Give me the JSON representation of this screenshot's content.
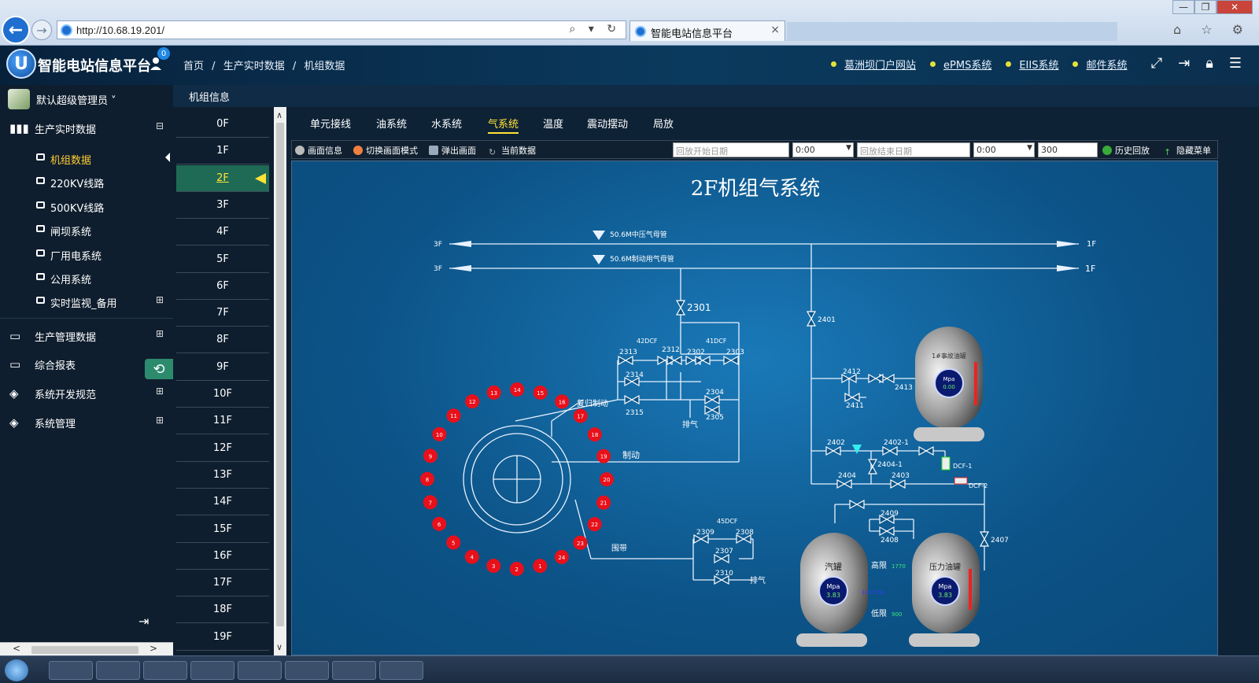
{
  "browser": {
    "url": "http://10.68.19.201/",
    "tab_title": "智能电站信息平台",
    "tab_close": "×",
    "address_tools": "⌕ ▾ ↻",
    "win_min": "—",
    "win_max": "❐",
    "win_close": "✕",
    "icons": "⌂ ☆ ⚙"
  },
  "header": {
    "logo_letter": "U",
    "app_title": "智能电站信息平台",
    "badge": "0",
    "breadcrumb": [
      "首页",
      "/",
      "生产实时数据",
      "/",
      "机组数据"
    ],
    "links": [
      "葛洲坝门户网站",
      "ePMS系统",
      "EIIS系统",
      "邮件系统"
    ]
  },
  "sidebar": {
    "user_name": "默认超级管理员 ˅",
    "groups": [
      {
        "label": "生产实时数据",
        "toggle": "⊟"
      },
      {
        "label": "生产管理数据",
        "toggle": "⊞"
      },
      {
        "label": "综合报表",
        "toggle": "⊞"
      },
      {
        "label": "系统开发规范",
        "toggle": "⊞"
      },
      {
        "label": "系统管理",
        "toggle": "⊞"
      }
    ],
    "items": [
      {
        "label": "机组数据",
        "active": true
      },
      {
        "label": "220KV线路"
      },
      {
        "label": "500KV线路"
      },
      {
        "label": "闸坝系统"
      },
      {
        "label": "厂用电系统"
      },
      {
        "label": "公用系统"
      },
      {
        "label": "实时监视_备用",
        "toggle": "⊞"
      }
    ]
  },
  "unit_bar": {
    "title": "机组信息"
  },
  "floors": [
    "0F",
    "1F",
    "2F",
    "3F",
    "4F",
    "5F",
    "6F",
    "7F",
    "8F",
    "9F",
    "10F",
    "11F",
    "12F",
    "13F",
    "14F",
    "15F",
    "16F",
    "17F",
    "18F",
    "19F"
  ],
  "active_floor": "2F",
  "tabs": [
    "单元接线",
    "油系统",
    "水系统",
    "气系统",
    "温度",
    "震动摆动",
    "局放"
  ],
  "active_tab": "气系统",
  "toolbar": {
    "screen_info": "画面信息",
    "switch_mode": "切换画面模式",
    "popup": "弹出画面",
    "current_data": "当前数据",
    "start_date_placeholder": "回放开始日期",
    "start_time": "0:00",
    "end_date_placeholder": "回放结束日期",
    "end_time": "0:00",
    "interval": "300",
    "history_playback": "历史回放",
    "hide_menu": "隐藏菜单"
  },
  "diagram": {
    "title": "2F机组气系统",
    "pipe1_label": "50.6M中压气母管",
    "pipe2_label": "50.6M制动用气母管",
    "left_end": "3F",
    "right_end": "1F",
    "valves": [
      "2301",
      "2313",
      "2312",
      "2302",
      "2303",
      "2314",
      "2304",
      "2315",
      "2305",
      "2309",
      "2308",
      "2307",
      "2310",
      "2401",
      "2412",
      "2413",
      "2411",
      "2402",
      "2402-1",
      "2404-1",
      "2403",
      "2404",
      "2409",
      "2408",
      "2407"
    ],
    "dcf_labels": [
      "42DCF",
      "41DCF",
      "45DCF"
    ],
    "dcf_right": [
      "DCF-1",
      "DCF-2"
    ],
    "annotations": {
      "reset_brake": "复归制动",
      "brake": "制动",
      "exhaust": "排气",
      "band": "围带"
    },
    "tanks": [
      {
        "name": "1#事故油罐",
        "unit": "Mpa",
        "value": "0.00"
      },
      {
        "name": "汽罐",
        "unit": "Mpa",
        "value": "3.83"
      },
      {
        "name": "压力油罐",
        "unit": "Mpa",
        "value": "3.83"
      }
    ],
    "limits": {
      "high_label": "高限",
      "high_value": "1770",
      "low_label": "低限",
      "low_value": "900",
      "mid_value": "1017.51"
    },
    "ring_numbers": [
      "1",
      "2",
      "3",
      "4",
      "5",
      "6",
      "7",
      "8",
      "9",
      "10",
      "11",
      "12",
      "13",
      "14",
      "15",
      "16",
      "17",
      "18",
      "19",
      "20",
      "21",
      "22",
      "23",
      "24"
    ]
  },
  "colors": {
    "accent": "#ffe236",
    "sidebar_bg": "#0f1e2e",
    "diagram_bg": "#0c5387",
    "ring_red": "#e8101a"
  }
}
